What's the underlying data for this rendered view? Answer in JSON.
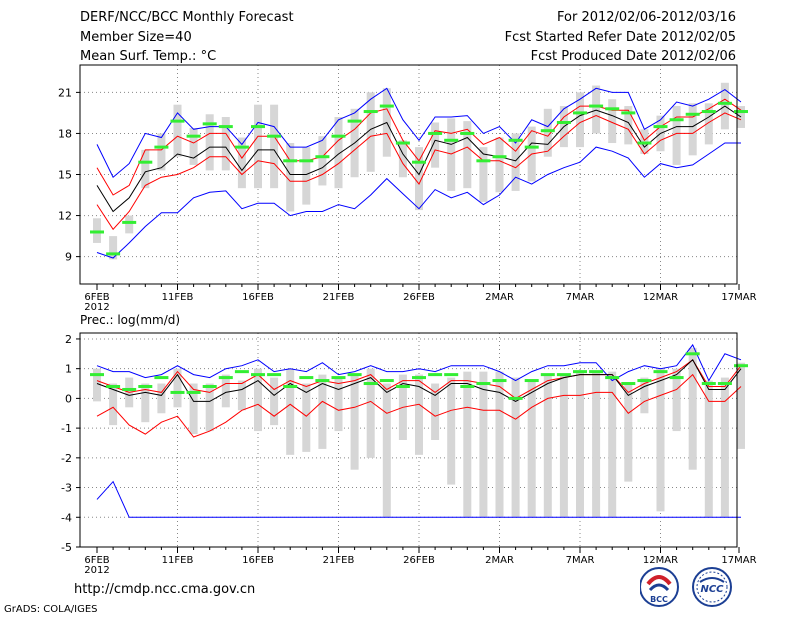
{
  "header": {
    "title": "DERF/NCC/BCC Monthly Forecast",
    "member_size": "Member Size=40",
    "variable": "Mean Surf. Temp.: °C",
    "period": "For 2012/02/06-2012/03/16",
    "fcst_started": "Fcst Started Refer Date 2012/02/05",
    "fcst_produced": "Fcst Produced Date 2012/02/06"
  },
  "footer": {
    "url": "http://cmdp.ncc.cma.gov.cn",
    "credit": "GrADS: COLA/IGES"
  },
  "logos": {
    "left": "BCC",
    "right": "NCC"
  },
  "colors": {
    "max": "#0000ff",
    "plus_sd": "#ff0000",
    "mean": "#000000",
    "box": "#d6d6d6",
    "median": "#33ee33",
    "grid": "#888888"
  },
  "chart_data": [
    {
      "type": "line",
      "name": "Mean Surf. Temp.",
      "ylabel": "Mean Surf. Temp.: °C",
      "ylim": [
        7,
        23
      ],
      "yticks": [
        9,
        12,
        15,
        18,
        21
      ],
      "ytick_labels": [
        "9",
        "12",
        "15",
        "18",
        "21"
      ],
      "x_start": "6FEB 2012",
      "x_days": 40,
      "xticks": [
        0,
        5,
        10,
        15,
        20,
        25,
        30,
        35,
        40
      ],
      "xtick_labels": [
        "6FEB",
        "11FEB",
        "16FEB",
        "21FEB",
        "26FEB",
        "2MAR",
        "7MAR",
        "12MAR",
        "17MAR"
      ],
      "xsub_label": "2012",
      "series": [
        {
          "name": "max",
          "role": "max",
          "values": [
            17.2,
            14.8,
            15.8,
            18,
            17.7,
            19.5,
            18.3,
            18.5,
            18.5,
            17.2,
            18.8,
            18.5,
            17,
            17,
            17.5,
            19,
            19.5,
            20.5,
            21.3,
            19,
            17.5,
            19.2,
            19.2,
            19.3,
            18,
            18.5,
            17.3,
            19,
            18.5,
            19.8,
            20.5,
            21.3,
            21,
            21,
            18.3,
            19,
            20.3,
            20,
            20.5,
            21.2,
            20.3
          ]
        },
        {
          "name": "plus_sd",
          "role": "upper",
          "values": [
            15.5,
            13.5,
            14.2,
            16.8,
            16.8,
            17.8,
            17.3,
            18,
            18,
            16.2,
            17.8,
            17.8,
            16,
            16,
            16.3,
            17.5,
            18.3,
            19.5,
            19.8,
            17.5,
            16,
            18.2,
            18,
            18.3,
            17.2,
            17.7,
            16.7,
            18.2,
            17.8,
            19.2,
            20,
            20,
            19.7,
            19.7,
            17.5,
            18.5,
            19.2,
            19.2,
            19.8,
            20.5,
            19.7
          ]
        },
        {
          "name": "mean",
          "role": "mean",
          "values": [
            14.2,
            12.3,
            13.3,
            15.2,
            15.5,
            16.5,
            16.2,
            17,
            17,
            15.3,
            16.8,
            16.8,
            15,
            15,
            15.5,
            16.5,
            17.3,
            18.3,
            18.8,
            16.5,
            15,
            17.5,
            17.2,
            17.7,
            16.5,
            16.3,
            16,
            17.3,
            17.2,
            18.5,
            19.3,
            19.7,
            19.3,
            18.8,
            17,
            18,
            18.5,
            18.5,
            19.2,
            20,
            19.2
          ]
        },
        {
          "name": "minus_sd",
          "role": "lower",
          "values": [
            12.8,
            11,
            12.3,
            14.2,
            14.8,
            15,
            15.5,
            16.3,
            16.3,
            15,
            16,
            15.8,
            14.5,
            14.5,
            15,
            15.8,
            16.8,
            17.8,
            18,
            15.8,
            14.3,
            16.8,
            16.5,
            17,
            16,
            16,
            15.5,
            16.5,
            16.7,
            17.8,
            18.8,
            19.3,
            18.8,
            18.3,
            16.5,
            17.5,
            18,
            18,
            18.8,
            19.5,
            19
          ]
        },
        {
          "name": "min",
          "role": "min",
          "values": [
            9.3,
            8.9,
            10,
            11.2,
            12.2,
            12.2,
            13.3,
            13.7,
            13.8,
            12.5,
            12.9,
            12.9,
            12,
            12.3,
            12.3,
            12.8,
            12.5,
            13.5,
            14.7,
            13.6,
            12.5,
            13.9,
            13.3,
            13.7,
            12.8,
            13.5,
            14.8,
            14.3,
            15,
            15.5,
            15.9,
            17,
            16.7,
            16.2,
            14.8,
            15.8,
            15.5,
            15.7,
            16.5,
            17.3,
            17.3
          ]
        },
        {
          "name": "box_top",
          "role": "box_top",
          "values": [
            11.8,
            10.5,
            12,
            16.8,
            18,
            20.1,
            18.4,
            19.4,
            19.2,
            17.7,
            20.1,
            20.1,
            17.3,
            17,
            17.8,
            19.2,
            19.8,
            21,
            21.3,
            17.5,
            17,
            18.8,
            19.1,
            18.9,
            17,
            17.7,
            18,
            18.5,
            19.8,
            20,
            21,
            21.5,
            20.5,
            20,
            18.3,
            19.3,
            20,
            20.2,
            20.2,
            21.7,
            20
          ]
        },
        {
          "name": "box_bottom",
          "role": "box_bottom",
          "values": [
            10,
            8.8,
            10.7,
            14,
            15.3,
            16.3,
            15.7,
            15.3,
            15.3,
            14,
            14,
            14,
            12.3,
            12.8,
            14.2,
            14,
            14.8,
            15.2,
            16.3,
            14.8,
            12.4,
            15.5,
            13.8,
            14,
            13,
            13.7,
            13.8,
            14.5,
            16.3,
            17,
            17,
            18,
            17.3,
            17.2,
            16.5,
            16.7,
            15.7,
            16.4,
            17.2,
            18.3,
            18.4
          ]
        },
        {
          "name": "median",
          "role": "median",
          "values": [
            10.8,
            9.2,
            11.5,
            15.9,
            17,
            18.9,
            17.8,
            18.7,
            18.5,
            17,
            18.5,
            17.8,
            16,
            16,
            16.3,
            17.8,
            18.9,
            19.6,
            20,
            17.3,
            15.9,
            18,
            17.5,
            18,
            16,
            16.3,
            17.5,
            17,
            18.2,
            18.8,
            19.5,
            20,
            19.8,
            19.5,
            17.3,
            18.5,
            19,
            19.4,
            19.6,
            20.2,
            19.6
          ]
        }
      ]
    },
    {
      "type": "line",
      "name": "Prec.",
      "ylabel": "Prec.: log(mm/d)",
      "ylim": [
        -5,
        2.2
      ],
      "yticks": [
        -5,
        -4,
        -3,
        -2,
        -1,
        0,
        1,
        2
      ],
      "ytick_labels": [
        "-5",
        "-4",
        "-3",
        "-2",
        "-1",
        "0",
        "1",
        "2"
      ],
      "x_start": "6FEB 2012",
      "x_days": 40,
      "xticks": [
        0,
        5,
        10,
        15,
        20,
        25,
        30,
        35,
        40
      ],
      "xtick_labels": [
        "6FEB",
        "11FEB",
        "16FEB",
        "21FEB",
        "26FEB",
        "2MAR",
        "7MAR",
        "12MAR",
        "17MAR"
      ],
      "xsub_label": "2012",
      "series": [
        {
          "name": "max",
          "role": "max",
          "values": [
            1.1,
            0.9,
            0.9,
            0.7,
            0.8,
            1.1,
            0.8,
            0.7,
            1,
            1.1,
            1.3,
            0.9,
            1,
            0.9,
            1.2,
            0.8,
            0.9,
            1.1,
            0.9,
            0.9,
            1,
            0.9,
            1.1,
            1.1,
            1.1,
            0.9,
            0.6,
            0.9,
            1.1,
            1.1,
            1.2,
            1.2,
            0.6,
            0.9,
            1.1,
            1,
            1.1,
            1.8,
            0.6,
            1.5,
            1.3
          ]
        },
        {
          "name": "plus_sd",
          "role": "upper",
          "values": [
            0.6,
            0.4,
            0.2,
            0.3,
            0.2,
            0.9,
            0.3,
            0.2,
            0.5,
            0.5,
            0.8,
            0.3,
            0.6,
            0.4,
            0.6,
            0.5,
            0.6,
            0.8,
            0.3,
            0.6,
            0.6,
            0.2,
            0.6,
            0.6,
            0.5,
            0.4,
            0,
            0.3,
            0.6,
            0.7,
            0.8,
            0.8,
            0.8,
            0.2,
            0.5,
            0.7,
            0.9,
            1.3,
            0.4,
            0.4,
            1.1
          ]
        },
        {
          "name": "mean",
          "role": "mean",
          "values": [
            0.5,
            0.3,
            0.1,
            0.2,
            0.1,
            0.8,
            -0.1,
            -0.1,
            0.2,
            0.3,
            0.6,
            0.1,
            0.5,
            0.2,
            0.5,
            0.3,
            0.5,
            0.7,
            0.2,
            0.5,
            0.4,
            0.1,
            0.5,
            0.5,
            0.3,
            0.2,
            -0.1,
            0.2,
            0.5,
            0.7,
            0.8,
            0.8,
            0.8,
            0.1,
            0.4,
            0.6,
            0.8,
            1.3,
            0.3,
            0.3,
            1
          ]
        },
        {
          "name": "minus_sd",
          "role": "lower",
          "values": [
            -0.6,
            -0.3,
            -0.9,
            -1.2,
            -0.8,
            -0.6,
            -1.3,
            -1.1,
            -0.8,
            -0.4,
            -0.2,
            -0.6,
            -0.2,
            -0.6,
            -0.1,
            -0.4,
            -0.3,
            -0.1,
            -0.5,
            -0.3,
            -0.2,
            -0.6,
            -0.4,
            -0.3,
            -0.4,
            -0.4,
            -0.7,
            -0.3,
            0,
            0.1,
            0.1,
            0.2,
            0.2,
            -0.5,
            -0.1,
            0.1,
            0.3,
            0.8,
            -0.1,
            -0.1,
            0.4
          ]
        },
        {
          "name": "min",
          "role": "min",
          "values": [
            -3.4,
            -2.8,
            -4,
            -4,
            -4,
            -4,
            -4,
            -4,
            -4,
            -4,
            -4,
            -4,
            -4,
            -4,
            -4,
            -4,
            -4,
            -4,
            -4,
            -4,
            -4,
            -4,
            -4,
            -4,
            -4,
            -4,
            -4,
            -4,
            -4,
            -4,
            -4,
            -4,
            -4,
            -4,
            -4,
            -4,
            -4,
            -4,
            -4,
            -4,
            -4
          ]
        },
        {
          "name": "box_top",
          "role": "box_top",
          "values": [
            1,
            0.5,
            0.7,
            0.5,
            0.5,
            1,
            0.5,
            0.5,
            0.8,
            0.6,
            1,
            0.7,
            1,
            0.5,
            0.8,
            0.7,
            0.8,
            1,
            0.5,
            0.8,
            0.8,
            0.5,
            0.7,
            0.9,
            0.9,
            0.9,
            0.7,
            0.6,
            0.8,
            0.8,
            0.9,
            0.9,
            0.9,
            0.5,
            0.7,
            1,
            1,
            1.7,
            0.6,
            0.7,
            1.2
          ]
        },
        {
          "name": "box_bottom",
          "role": "box_bottom",
          "values": [
            -0.1,
            -0.9,
            -0.3,
            -0.8,
            -0.5,
            -0.3,
            -1.2,
            -1.1,
            -0.3,
            -0.4,
            -1.1,
            -0.9,
            -1.9,
            -1.8,
            -1.7,
            -1.1,
            -2.4,
            -2,
            -4,
            -1.4,
            -1.9,
            -1.4,
            -2.9,
            -4,
            -4,
            -4,
            -4,
            -4,
            -4,
            -4,
            -4,
            -4,
            -4,
            -2.8,
            -0.5,
            -3.8,
            -1.1,
            -2.4,
            -4,
            -4,
            -1.7
          ]
        },
        {
          "name": "median",
          "role": "median",
          "values": [
            0.8,
            0.4,
            0.3,
            0.4,
            0.7,
            0.2,
            0.2,
            0.4,
            0.7,
            0.9,
            0.8,
            0.8,
            0.4,
            0.7,
            0.6,
            0.7,
            0.8,
            0.5,
            0.6,
            0.4,
            0.7,
            0.8,
            0.8,
            0.4,
            0.5,
            0.6,
            0,
            0.6,
            0.8,
            0.8,
            0.9,
            0.9,
            0.7,
            0.5,
            0.6,
            0.9,
            0.7,
            1.5,
            0.5,
            0.5,
            1.1
          ]
        }
      ]
    }
  ]
}
